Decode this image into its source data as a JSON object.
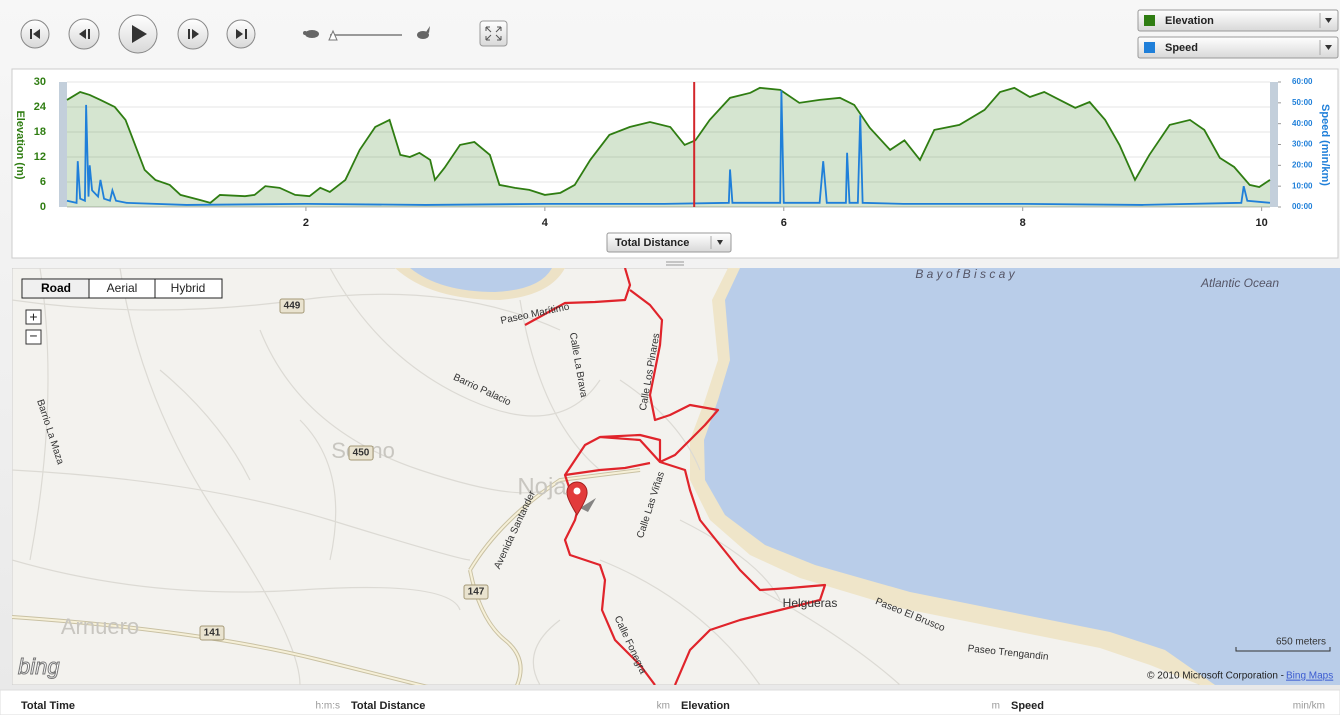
{
  "chart_data": {
    "type": "area",
    "x_label": "Total Distance",
    "y_label": "Elevation (m)",
    "y2_label": "Speed (min/km)",
    "xlim": [
      0,
      10.07
    ],
    "xticks": [
      2,
      4,
      6,
      8,
      10
    ],
    "ylim": [
      0,
      30
    ],
    "yticks": [
      0,
      6,
      12,
      18,
      24,
      30
    ],
    "y2lim": [
      0,
      60
    ],
    "y2ticks": [
      {
        "value": 0,
        "label": "00:00"
      },
      {
        "value": 10,
        "label": "10:00"
      },
      {
        "value": 20,
        "label": "20:00"
      },
      {
        "value": 30,
        "label": "30:00"
      },
      {
        "value": 40,
        "label": "40:00"
      },
      {
        "value": 50,
        "label": "50:00"
      },
      {
        "value": 60,
        "label": "60:00"
      }
    ],
    "grid": true,
    "cursor": 5.25,
    "series": [
      {
        "name": "Elevation",
        "type": "area",
        "color": "#2f7d12",
        "x": [
          0,
          0.11,
          0.19,
          0.28,
          0.4,
          0.49,
          0.57,
          0.65,
          0.74,
          0.86,
          0.95,
          1.11,
          1.2,
          1.28,
          1.49,
          1.57,
          1.66,
          1.78,
          1.91,
          2.03,
          2.12,
          2.2,
          2.33,
          2.45,
          2.58,
          2.7,
          2.79,
          2.87,
          2.95,
          3.04,
          3.08,
          3.16,
          3.29,
          3.41,
          3.54,
          3.62,
          3.75,
          3.87,
          4,
          4.13,
          4.25,
          4.38,
          4.54,
          4.71,
          4.88,
          5.05,
          5.17,
          5.26,
          5.38,
          5.55,
          5.72,
          5.8,
          5.97,
          6.13,
          6.3,
          6.47,
          6.59,
          6.72,
          6.89,
          7.01,
          7.14,
          7.26,
          7.47,
          7.68,
          7.81,
          7.93,
          8.06,
          8.18,
          8.31,
          8.44,
          8.56,
          8.69,
          8.81,
          8.94,
          9.06,
          9.23,
          9.4,
          9.52,
          9.65,
          9.77,
          9.9,
          9.98,
          10.07
        ],
        "values": [
          25.7,
          27.6,
          26.9,
          25.7,
          24,
          20.9,
          14.9,
          8.9,
          6.5,
          5.3,
          2.9,
          1.7,
          1,
          2.9,
          2.6,
          2.9,
          5,
          4.6,
          2.9,
          2.6,
          4.6,
          3.6,
          6.5,
          13.7,
          19.2,
          20.9,
          12.5,
          12,
          13,
          11.3,
          6.5,
          9.4,
          14.9,
          15.6,
          12.5,
          5.3,
          4.6,
          4.1,
          2.9,
          3.4,
          5.3,
          11.3,
          17.3,
          19.2,
          20.4,
          19.2,
          14.9,
          16,
          20.9,
          26.2,
          27.4,
          28.6,
          28.1,
          25,
          25.7,
          26.2,
          24.5,
          19,
          13.7,
          16,
          11.3,
          18.5,
          19.7,
          23.3,
          27.6,
          28.6,
          26.4,
          27.6,
          25.7,
          23.8,
          25.2,
          20.9,
          14.9,
          6.5,
          12.5,
          19.7,
          20.9,
          18.5,
          11.8,
          9.6,
          5.3,
          4.8,
          6.5
        ]
      },
      {
        "name": "Speed",
        "type": "line",
        "axis": "y2",
        "color": "#1f7fd9",
        "x": [
          0,
          0.08,
          0.09,
          0.11,
          0.15,
          0.16,
          0.18,
          0.19,
          0.21,
          0.26,
          0.28,
          0.31,
          0.36,
          0.38,
          0.41,
          0.5,
          1,
          2,
          3,
          4,
          5,
          5.54,
          5.55,
          5.57,
          5.97,
          5.98,
          6,
          6.3,
          6.33,
          6.36,
          6.52,
          6.53,
          6.55,
          6.62,
          6.64,
          6.66,
          7,
          8,
          9,
          9.83,
          9.85,
          9.88,
          10.07
        ],
        "values": [
          3,
          2,
          22,
          4,
          3,
          49,
          5,
          20,
          8,
          5,
          13,
          4,
          3,
          8,
          3,
          2,
          1,
          1.5,
          1,
          1.5,
          1.5,
          2,
          18,
          2,
          2,
          56,
          2,
          2,
          22,
          2,
          2,
          26,
          2,
          2,
          44,
          2,
          1.5,
          1.5,
          1,
          2,
          10,
          3,
          2
        ]
      }
    ]
  },
  "map": {
    "view_buttons": [
      "Road",
      "Aerial",
      "Hybrid"
    ],
    "zoom_in": "+",
    "zoom_out": "−",
    "labels": [
      "Paseo Marítimo",
      "Calle La Brava",
      "Calle Los Pinares",
      "Barrio Palacio",
      "Barrio La Maza",
      "Soano",
      "450",
      "449",
      "Noja",
      "Avenida Santander",
      "Calle Las Viñas",
      "147",
      "141",
      "Arnuero",
      "Calle Fonegra",
      "Helgueras",
      "Paseo El Brusco",
      "Paseo Trengandin",
      "B a y   o f   B i s c a y",
      "Atlantic Ocean"
    ],
    "scale": "650 meters",
    "logo": "bing",
    "copyright": "© 2010 Microsoft Corporation - ",
    "copyright_link": "Bing Maps"
  },
  "footer": [
    {
      "label": "Total Time",
      "unit": "h:m:s"
    },
    {
      "label": "Total Distance",
      "unit": "km"
    },
    {
      "label": "Elevation",
      "unit": "m"
    },
    {
      "label": "Speed",
      "unit": "min/km"
    }
  ]
}
